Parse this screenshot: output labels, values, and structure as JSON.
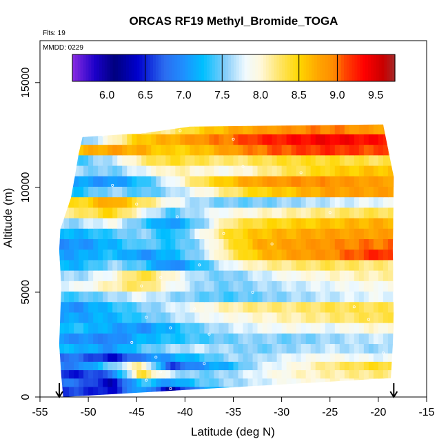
{
  "chart_data": {
    "type": "heatmap",
    "title": "ORCAS RF19 Methyl_Bromide_TOGA",
    "flights_label": "Flts: 19",
    "date_label": "MMDD: 0229",
    "xlabel": "Latitude (deg N)",
    "ylabel": "Altitude (m)",
    "xlim": [
      -55,
      -15
    ],
    "ylim": [
      0,
      17000
    ],
    "xticks": [
      -55,
      -50,
      -45,
      -40,
      -35,
      -30,
      -25,
      -20,
      -15
    ],
    "yticks": [
      0,
      5000,
      10000,
      15000
    ],
    "colorbar": {
      "range": [
        5.55,
        9.75
      ],
      "ticks": [
        6.0,
        6.5,
        7.0,
        7.5,
        8.0,
        8.5,
        9.0,
        9.5
      ],
      "dividers": [
        6.5,
        7.5,
        8.5,
        9.0
      ],
      "stops": [
        {
          "value": 5.55,
          "color": "#8a2be2"
        },
        {
          "value": 5.85,
          "color": "#1a00c8"
        },
        {
          "value": 6.1,
          "color": "#00007f"
        },
        {
          "value": 6.4,
          "color": "#0000cd"
        },
        {
          "value": 6.75,
          "color": "#2b6cf0"
        },
        {
          "value": 7.0,
          "color": "#1e90ff"
        },
        {
          "value": 7.25,
          "color": "#00bfff"
        },
        {
          "value": 7.55,
          "color": "#87cefa"
        },
        {
          "value": 7.8,
          "color": "#f0faff"
        },
        {
          "value": 8.0,
          "color": "#fff8dc"
        },
        {
          "value": 8.25,
          "color": "#ffe566"
        },
        {
          "value": 8.5,
          "color": "#ffd700"
        },
        {
          "value": 8.75,
          "color": "#ffa500"
        },
        {
          "value": 8.95,
          "color": "#ff8c00"
        },
        {
          "value": 9.1,
          "color": "#ff4500"
        },
        {
          "value": 9.35,
          "color": "#ff0000"
        },
        {
          "value": 9.6,
          "color": "#c80000"
        },
        {
          "value": 9.75,
          "color": "#a52a2a"
        }
      ]
    },
    "curtain_outline": [
      [
        -52.6,
        0
      ],
      [
        -52.8,
        1000
      ],
      [
        -53.0,
        2500
      ],
      [
        -52.9,
        4000
      ],
      [
        -52.8,
        5200
      ],
      [
        -53.0,
        7000
      ],
      [
        -52.9,
        8000
      ],
      [
        -51.8,
        9500
      ],
      [
        -51.4,
        10500
      ],
      [
        -51.0,
        11600
      ],
      [
        -50.6,
        12400
      ],
      [
        -44.0,
        12600
      ],
      [
        -39.5,
        12900
      ],
      [
        -19.5,
        13000
      ],
      [
        -18.4,
        10500
      ],
      [
        -18.5,
        7000
      ],
      [
        -18.4,
        4000
      ],
      [
        -18.5,
        2500
      ],
      [
        -18.7,
        900
      ]
    ],
    "curtain_bands": [
      {
        "alt": 300,
        "values": [
          6.6,
          6.4,
          7.2,
          6.2,
          7.0,
          7.3,
          7.6,
          7.8,
          7.9,
          7.9
        ]
      },
      {
        "alt": 700,
        "values": [
          6.8,
          6.3,
          7.4,
          7.0,
          7.4,
          7.6,
          7.7,
          7.9,
          8.0,
          8.1
        ]
      },
      {
        "alt": 1100,
        "values": [
          6.5,
          6.8,
          8.4,
          7.7,
          7.5,
          7.6,
          7.8,
          8.0,
          8.1,
          8.2
        ]
      },
      {
        "alt": 1500,
        "values": [
          6.9,
          7.5,
          8.2,
          6.6,
          7.0,
          7.2,
          7.7,
          7.9,
          8.2,
          8.4
        ]
      },
      {
        "alt": 1900,
        "values": [
          6.8,
          6.4,
          6.9,
          7.1,
          7.3,
          7.6,
          7.6,
          7.8,
          7.9,
          7.8
        ]
      },
      {
        "alt": 2300,
        "values": [
          7.2,
          7.0,
          7.4,
          7.6,
          7.7,
          7.6,
          7.5,
          7.6,
          7.7,
          7.6
        ]
      },
      {
        "alt": 2800,
        "values": [
          7.0,
          6.9,
          7.2,
          7.3,
          7.4,
          7.5,
          7.6,
          7.5,
          7.6,
          7.7
        ]
      },
      {
        "alt": 3300,
        "values": [
          7.3,
          7.1,
          7.0,
          7.2,
          7.5,
          7.7,
          7.8,
          7.9,
          7.8,
          8.0
        ]
      },
      {
        "alt": 3800,
        "values": [
          7.1,
          7.2,
          7.4,
          7.6,
          7.8,
          7.9,
          8.0,
          8.1,
          8.2,
          8.3
        ]
      },
      {
        "alt": 4300,
        "values": [
          7.0,
          7.3,
          7.5,
          7.7,
          7.9,
          8.1,
          8.2,
          8.2,
          8.3,
          8.3
        ]
      },
      {
        "alt": 4800,
        "values": [
          7.4,
          7.6,
          7.8,
          7.6,
          7.5,
          7.4,
          7.5,
          7.6,
          7.7,
          7.8
        ]
      },
      {
        "alt": 5300,
        "values": [
          7.8,
          8.1,
          8.3,
          7.9,
          7.6,
          7.5,
          7.6,
          7.7,
          7.8,
          7.9
        ]
      },
      {
        "alt": 5800,
        "values": [
          7.6,
          7.9,
          8.4,
          8.0,
          7.6,
          7.5,
          7.7,
          7.9,
          8.0,
          8.1
        ]
      },
      {
        "alt": 6300,
        "values": [
          7.2,
          7.6,
          7.4,
          6.9,
          7.3,
          7.8,
          8.1,
          8.2,
          8.3,
          8.2
        ]
      },
      {
        "alt": 6800,
        "values": [
          7.1,
          7.3,
          7.0,
          7.2,
          7.6,
          8.2,
          8.6,
          8.8,
          8.9,
          9.2
        ]
      },
      {
        "alt": 7300,
        "values": [
          7.0,
          7.2,
          7.5,
          7.3,
          7.6,
          8.3,
          8.7,
          8.8,
          8.9,
          9.0
        ]
      },
      {
        "alt": 7800,
        "values": [
          7.2,
          7.4,
          7.6,
          7.2,
          7.8,
          8.4,
          8.6,
          8.7,
          8.8,
          8.8
        ]
      },
      {
        "alt": 8300,
        "values": [
          7.6,
          7.9,
          7.4,
          7.0,
          7.5,
          8.2,
          8.4,
          8.5,
          8.6,
          8.7
        ]
      },
      {
        "alt": 8800,
        "values": [
          8.2,
          8.5,
          7.9,
          7.4,
          7.7,
          7.9,
          8.0,
          8.1,
          8.2,
          8.3
        ]
      },
      {
        "alt": 9300,
        "values": [
          8.4,
          8.8,
          8.3,
          7.9,
          7.6,
          7.5,
          7.5,
          7.6,
          7.7,
          7.8
        ]
      },
      {
        "alt": 9800,
        "values": [
          7.3,
          7.6,
          7.4,
          7.6,
          7.9,
          8.2,
          8.5,
          8.6,
          8.8,
          8.8
        ]
      },
      {
        "alt": 10300,
        "values": [
          7.1,
          7.0,
          7.3,
          7.8,
          8.3,
          8.6,
          8.8,
          8.9,
          8.9,
          8.8
        ]
      },
      {
        "alt": 10800,
        "values": [
          7.6,
          7.5,
          7.8,
          8.1,
          8.0,
          7.9,
          8.1,
          8.3,
          8.5,
          8.6
        ]
      },
      {
        "alt": 11300,
        "values": [
          7.4,
          7.7,
          8.2,
          8.4,
          8.3,
          8.2,
          8.3,
          8.4,
          8.4,
          8.3
        ]
      },
      {
        "alt": 11800,
        "values": [
          8.6,
          8.8,
          8.7,
          8.5,
          8.6,
          8.8,
          9.0,
          9.1,
          9.2,
          9.1
        ]
      },
      {
        "alt": 12300,
        "values": [
          7.4,
          8.0,
          8.6,
          8.7,
          8.9,
          9.0,
          9.2,
          9.3,
          9.4,
          9.3
        ]
      },
      {
        "alt": 12800,
        "values": [
          null,
          null,
          null,
          8.2,
          8.5,
          8.7,
          8.8,
          8.9,
          9.0,
          8.8
        ]
      }
    ],
    "curtain_lat_centers": [
      -51.0,
      -47.5,
      -44.5,
      -41.5,
      -38.5,
      -35.5,
      -32.5,
      -29.0,
      -25.0,
      -20.5
    ],
    "sample_points": [
      {
        "lat": -48.5,
        "alt": 12500
      },
      {
        "lat": -47.5,
        "alt": 10100
      },
      {
        "lat": -45.0,
        "alt": 9200
      },
      {
        "lat": -40.8,
        "alt": 8600
      },
      {
        "lat": -36.0,
        "alt": 7800
      },
      {
        "lat": -31.0,
        "alt": 7300
      },
      {
        "lat": -38.5,
        "alt": 6300
      },
      {
        "lat": -42.5,
        "alt": 5700
      },
      {
        "lat": -44.5,
        "alt": 5300
      },
      {
        "lat": -33.0,
        "alt": 5000
      },
      {
        "lat": -39.0,
        "alt": 4200
      },
      {
        "lat": -44.0,
        "alt": 3800
      },
      {
        "lat": -41.5,
        "alt": 3300
      },
      {
        "lat": -37.5,
        "alt": 3000
      },
      {
        "lat": -45.5,
        "alt": 2600
      },
      {
        "lat": -43.0,
        "alt": 1900
      },
      {
        "lat": -38.0,
        "alt": 1600
      },
      {
        "lat": -42.5,
        "alt": 1200
      },
      {
        "lat": -44.0,
        "alt": 800
      },
      {
        "lat": -41.5,
        "alt": 400
      },
      {
        "lat": -39.0,
        "alt": 200
      },
      {
        "lat": -36.5,
        "alt": 300
      },
      {
        "lat": -34.0,
        "alt": 11000
      },
      {
        "lat": -28.0,
        "alt": 10700
      },
      {
        "lat": -25.0,
        "alt": 8800
      },
      {
        "lat": -22.5,
        "alt": 4300
      },
      {
        "lat": -21.0,
        "alt": 3700
      },
      {
        "lat": -19.5,
        "alt": 2100
      },
      {
        "lat": -35.0,
        "alt": 12300
      },
      {
        "lat": -40.5,
        "alt": 12700
      }
    ],
    "arrow_marker_lats": [
      -53.0,
      -18.4
    ]
  }
}
